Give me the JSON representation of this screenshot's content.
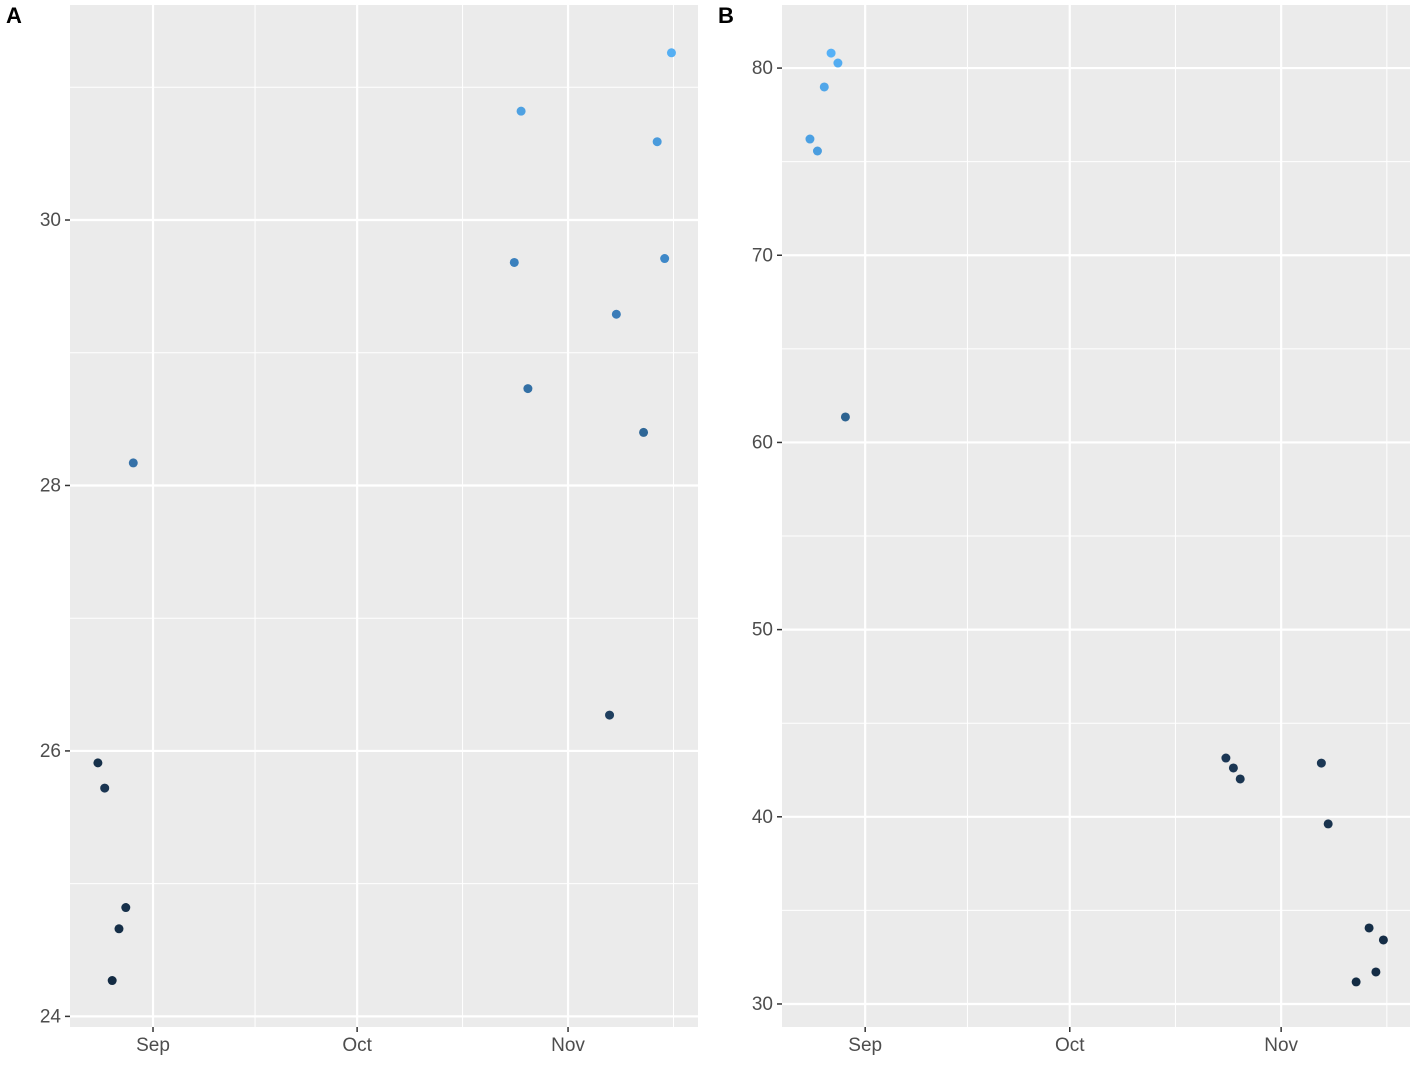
{
  "chart_data": [
    {
      "type": "scatter",
      "title": "A",
      "x": [
        235.9,
        236.9,
        238.0,
        239.0,
        240.0,
        241.1,
        297.1,
        298.1,
        299.1,
        311.1,
        312.1,
        316.1,
        318.1,
        319.2,
        320.2
      ],
      "values": [
        25.91,
        25.72,
        24.27,
        24.66,
        24.82,
        28.17,
        29.68,
        30.82,
        28.73,
        26.27,
        29.29,
        28.4,
        30.59,
        29.71,
        31.26
      ],
      "colors": [
        "#16304a",
        "#1a3552",
        "#132b43",
        "#152e47",
        "#16304a",
        "#3571a8",
        "#3a80bd",
        "#4ea1e2",
        "#3370a5",
        "#1f3f5f",
        "#3a7cb8",
        "#2f6797",
        "#4a9bdc",
        "#3e88c8",
        "#55aff3"
      ],
      "xlim": [
        231.8,
        324.1
      ],
      "ylim": [
        23.92,
        31.62
      ],
      "xticks": [
        {
          "value": 244,
          "label": "Sep"
        },
        {
          "value": 274,
          "label": "Oct"
        },
        {
          "value": 305,
          "label": "Nov"
        }
      ],
      "yticks": [
        24,
        26,
        28,
        30
      ],
      "grid": true
    },
    {
      "type": "scatter",
      "title": "B",
      "x": [
        235.9,
        237.0,
        238.0,
        239.0,
        240.0,
        241.1,
        296.9,
        298.0,
        299.0,
        310.9,
        311.9,
        317.9,
        316.0,
        318.9,
        320.0
      ],
      "values": [
        76.21,
        75.57,
        78.99,
        80.8,
        80.27,
        61.36,
        43.14,
        42.61,
        42.02,
        42.87,
        39.62,
        34.06,
        31.18,
        31.71,
        33.42
      ],
      "colors": [
        "#4ba0e3",
        "#4a9ddf",
        "#50a6e9",
        "#56b1f7",
        "#53acf1",
        "#2d6391",
        "#1b3755",
        "#1b3653",
        "#1a3551",
        "#1b3754",
        "#19334e",
        "#152e47",
        "#132b43",
        "#142c45",
        "#152d46"
      ],
      "xlim": [
        231.8,
        323.9
      ],
      "ylim": [
        28.77,
        83.37
      ],
      "xticks": [
        {
          "value": 244,
          "label": "Sep"
        },
        {
          "value": 274,
          "label": "Oct"
        },
        {
          "value": 305,
          "label": "Nov"
        }
      ],
      "yticks": [
        30,
        40,
        50,
        60,
        70,
        80
      ],
      "grid": true
    }
  ]
}
